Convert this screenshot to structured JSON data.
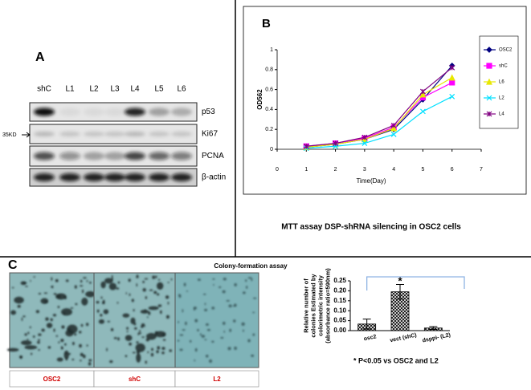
{
  "panel_a": {
    "label": "A",
    "lanes": [
      "shC",
      "L1",
      "L2",
      "L3",
      "L4",
      "L5",
      "L6"
    ],
    "rows": [
      "p53",
      "Ki67",
      "PCNA",
      "β-actin"
    ],
    "marker": "35KD"
  },
  "panel_b": {
    "label": "B",
    "caption": "MTT assay DSP-shRNA silencing in OSC2 cells"
  },
  "panel_c": {
    "label": "C",
    "title": "Colony-formation assay",
    "photos": [
      "OSC2",
      "shC",
      "L2"
    ],
    "significance": "*",
    "footnote": "* P<0.05 vs OSC2 and L2"
  },
  "chart_data": [
    {
      "type": "line",
      "x_label": "Time(Day)",
      "y_label": "OD562",
      "x": [
        1,
        2,
        3,
        4,
        5,
        6
      ],
      "xlim": [
        0,
        7
      ],
      "xticks": [
        0,
        1,
        2,
        3,
        4,
        5,
        6,
        7
      ],
      "ylim": [
        0,
        1
      ],
      "yticks": [
        0,
        0.2,
        0.4,
        0.6,
        0.8,
        1
      ],
      "legend": "right",
      "series": [
        {
          "name": "OSC2",
          "color": "#000080",
          "marker": "diamond",
          "values": [
            0.02,
            0.05,
            0.1,
            0.2,
            0.5,
            0.84
          ]
        },
        {
          "name": "shC",
          "color": "#ff00ff",
          "marker": "square",
          "values": [
            0.03,
            0.06,
            0.11,
            0.22,
            0.52,
            0.67
          ]
        },
        {
          "name": "L6",
          "color": "#e8e800",
          "marker": "triangle",
          "values": [
            0.02,
            0.05,
            0.1,
            0.21,
            0.55,
            0.72
          ]
        },
        {
          "name": "L2",
          "color": "#00e0ff",
          "marker": "x",
          "values": [
            0.01,
            0.03,
            0.06,
            0.15,
            0.38,
            0.53
          ]
        },
        {
          "name": "L4",
          "color": "#800080",
          "marker": "star",
          "values": [
            0.03,
            0.06,
            0.12,
            0.24,
            0.58,
            0.82
          ]
        }
      ]
    },
    {
      "type": "bar",
      "y_label": "Relative number of colonies Estimated by colorimetric intensity (absorbance ratio=590nm)",
      "categories": [
        "osc2",
        "vect (shC)",
        "dsppi- (L2)"
      ],
      "values": [
        0.033,
        0.195,
        0.013
      ],
      "errors": [
        0.025,
        0.037,
        0.007
      ],
      "ylim": [
        0,
        0.25
      ],
      "yticks": [
        {
          "value": 0,
          "label": "0.00"
        },
        {
          "value": 0.05,
          "label": "0.05"
        },
        {
          "value": 0.1,
          "label": "0.10"
        },
        {
          "value": 0.15,
          "label": "0.15"
        },
        {
          "value": 0.2,
          "label": "0.20"
        },
        {
          "value": 0.25,
          "label": "0.25"
        }
      ],
      "color": "#000000"
    }
  ]
}
